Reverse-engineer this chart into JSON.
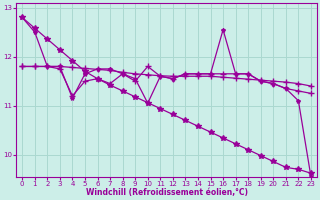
{
  "xlabel": "Windchill (Refroidissement éolien,°C)",
  "hours": [
    0,
    1,
    2,
    3,
    4,
    5,
    6,
    7,
    8,
    9,
    10,
    11,
    12,
    13,
    14,
    15,
    16,
    17,
    18,
    19,
    20,
    21,
    22,
    23
  ],
  "line_jagged1": [
    12.8,
    12.5,
    11.8,
    11.8,
    11.15,
    11.65,
    11.75,
    11.75,
    11.65,
    11.55,
    11.05,
    11.6,
    11.55,
    11.65,
    11.65,
    11.65,
    12.55,
    11.65,
    11.65,
    11.5,
    11.45,
    11.35,
    11.1,
    9.55
  ],
  "line_jagged2": [
    11.8,
    11.8,
    11.8,
    11.75,
    11.2,
    11.5,
    11.55,
    11.45,
    11.65,
    11.5,
    11.8,
    11.6,
    11.55,
    11.65,
    11.65,
    11.65,
    11.65,
    11.65,
    11.65,
    11.5,
    11.45,
    11.35,
    11.3,
    11.25
  ],
  "line_diag": [
    12.8,
    12.58,
    12.36,
    12.14,
    11.92,
    11.7,
    11.55,
    11.42,
    11.3,
    11.18,
    11.06,
    10.94,
    10.82,
    10.7,
    10.58,
    10.46,
    10.34,
    10.22,
    10.1,
    9.98,
    9.86,
    9.74,
    9.7,
    9.62
  ],
  "line_flat": [
    11.8,
    11.8,
    11.8,
    11.8,
    11.78,
    11.76,
    11.74,
    11.72,
    11.68,
    11.65,
    11.63,
    11.61,
    11.6,
    11.6,
    11.6,
    11.6,
    11.58,
    11.56,
    11.54,
    11.52,
    11.5,
    11.48,
    11.45,
    11.4
  ],
  "line_color": "#990099",
  "bg_color": "#cceee8",
  "grid_color": "#aad8d0",
  "ylim": [
    9.55,
    13.1
  ],
  "yticks": [
    10,
    11,
    12,
    13
  ],
  "xticks": [
    0,
    1,
    2,
    3,
    4,
    5,
    6,
    7,
    8,
    9,
    10,
    11,
    12,
    13,
    14,
    15,
    16,
    17,
    18,
    19,
    20,
    21,
    22,
    23
  ]
}
